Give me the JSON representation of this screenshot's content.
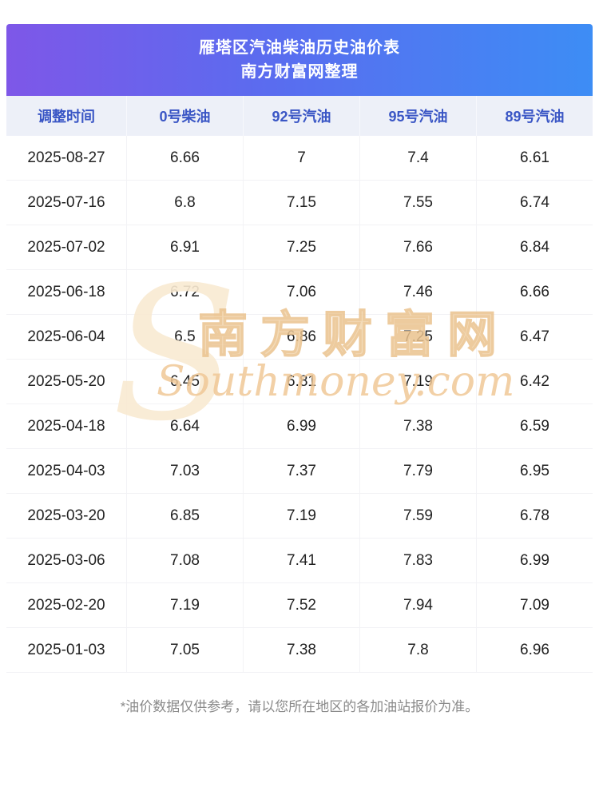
{
  "banner": {
    "title": "雁塔区汽油柴油历史油价表",
    "subtitle": "南方财富网整理"
  },
  "table": {
    "columns": [
      "调整时间",
      "0号柴油",
      "92号汽油",
      "95号汽油",
      "89号汽油"
    ],
    "rows": [
      [
        "2025-08-27",
        "6.66",
        "7",
        "7.4",
        "6.61"
      ],
      [
        "2025-07-16",
        "6.8",
        "7.15",
        "7.55",
        "6.74"
      ],
      [
        "2025-07-02",
        "6.91",
        "7.25",
        "7.66",
        "6.84"
      ],
      [
        "2025-06-18",
        "6.72",
        "7.06",
        "7.46",
        "6.66"
      ],
      [
        "2025-06-04",
        "6.5",
        "6.86",
        "7.25",
        "6.47"
      ],
      [
        "2025-05-20",
        "6.45",
        "6.81",
        "7.19",
        "6.42"
      ],
      [
        "2025-04-18",
        "6.64",
        "6.99",
        "7.38",
        "6.59"
      ],
      [
        "2025-04-03",
        "7.03",
        "7.37",
        "7.79",
        "6.95"
      ],
      [
        "2025-03-20",
        "6.85",
        "7.19",
        "7.59",
        "6.78"
      ],
      [
        "2025-03-06",
        "7.08",
        "7.41",
        "7.83",
        "6.99"
      ],
      [
        "2025-02-20",
        "7.19",
        "7.52",
        "7.94",
        "7.09"
      ],
      [
        "2025-01-03",
        "7.05",
        "7.38",
        "7.8",
        "6.96"
      ]
    ]
  },
  "watermark": {
    "s": "S",
    "cn": "南方财富网",
    "en": "Southmoney.com"
  },
  "footer": {
    "note": "*油价数据仅供参考，请以您所在地区的各加油站报价为准。"
  },
  "colors": {
    "banner_gradient_left": "#7e57e8",
    "banner_gradient_right": "#3d8df5",
    "header_row_bg": "#edf0f8",
    "header_text": "#3a56c5",
    "body_text": "#222222",
    "watermark_orange": "#f0c897"
  }
}
